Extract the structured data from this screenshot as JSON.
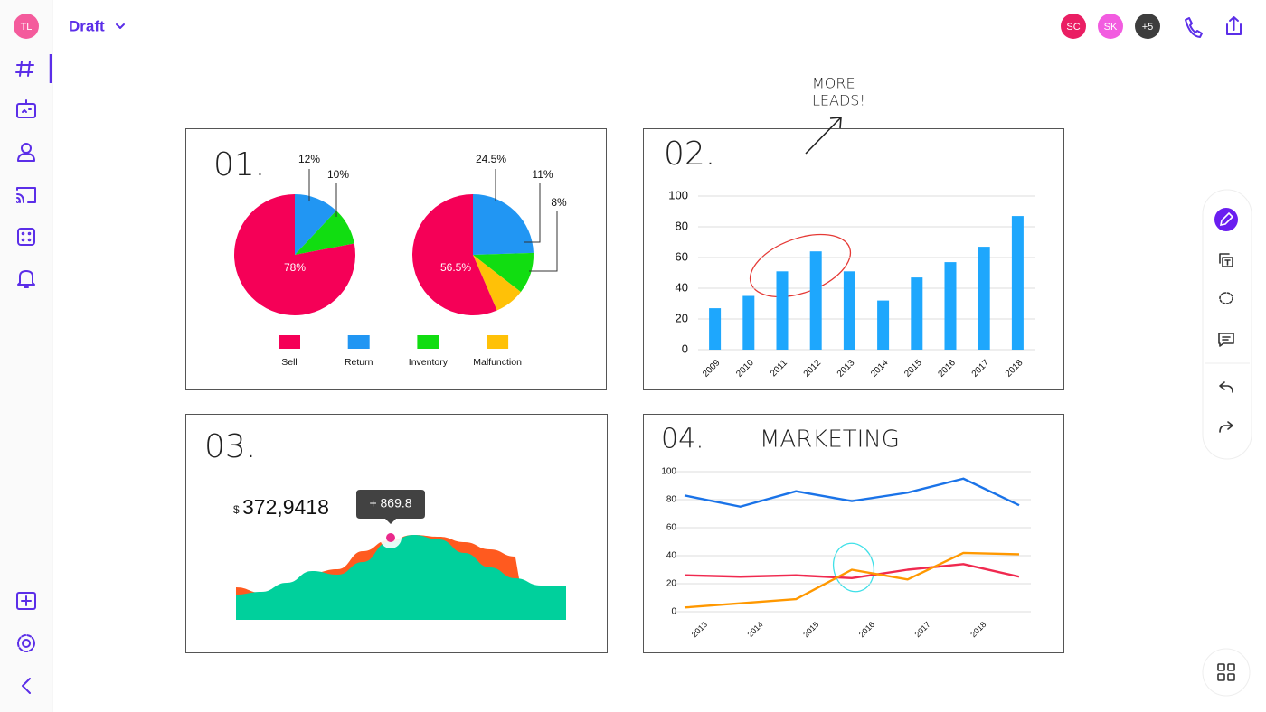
{
  "app": {
    "user": "TL",
    "title": "Draft",
    "collaborators": [
      "SC",
      "SK",
      "+5"
    ]
  },
  "chart_data": [
    {
      "type": "pie",
      "label": "01.",
      "categories": [
        "Sell",
        "Return",
        "Inventory",
        "Malfunction"
      ],
      "colors": [
        "#f50057",
        "#2196f3",
        "#11dd11",
        "#ffc107"
      ],
      "series": [
        {
          "values": [
            78,
            12,
            10,
            null
          ],
          "value_labels": [
            "78%",
            "12%",
            "10%",
            null
          ]
        },
        {
          "values": [
            56.5,
            24.5,
            11,
            8
          ],
          "value_labels": [
            "56.5%",
            "24.5%",
            "11%",
            "8%"
          ]
        }
      ]
    },
    {
      "type": "bar",
      "label": "02.",
      "annotation": [
        "MORE",
        "LEADS!"
      ],
      "categories": [
        "2009",
        "2010",
        "2011",
        "2012",
        "2013",
        "2014",
        "2015",
        "2016",
        "2017",
        "2018"
      ],
      "values": [
        27,
        35,
        51,
        64,
        51,
        32,
        47,
        57,
        67,
        87
      ],
      "color": "#1ea7fd",
      "ylim": [
        0,
        100
      ],
      "yticks": [
        0,
        20,
        40,
        60,
        80,
        100
      ],
      "grid": true
    },
    {
      "type": "area",
      "label": "03.",
      "currency": "$",
      "total": "372,9418",
      "tooltip": "+ 869.8",
      "series": [
        {
          "color": "#ff5a1f",
          "values": [
            36,
            30,
            40,
            52,
            56,
            76,
            88,
            94,
            92,
            86,
            78,
            70,
            null,
            null
          ]
        },
        {
          "color": "#00d09c",
          "values": [
            28,
            31,
            41,
            54,
            50,
            64,
            86,
            94,
            89,
            74,
            58,
            46,
            38,
            37
          ]
        }
      ]
    },
    {
      "type": "line",
      "label": "04.",
      "title": "MARKETING",
      "categories": [
        "2013",
        "2014",
        "2015",
        "2016",
        "2017",
        "2018",
        null
      ],
      "series": [
        {
          "color": "#1a73e8",
          "values": [
            83,
            75,
            86,
            79,
            85,
            95,
            76
          ]
        },
        {
          "color": "#f0294f",
          "values": [
            26,
            25,
            26,
            24,
            30,
            34,
            25
          ]
        },
        {
          "color": "#ff9800",
          "values": [
            3,
            6,
            9,
            30,
            23,
            42,
            41
          ]
        }
      ],
      "ylim": [
        0,
        100
      ],
      "yticks": [
        0,
        20,
        40,
        60,
        80,
        100
      ],
      "grid": true
    }
  ]
}
